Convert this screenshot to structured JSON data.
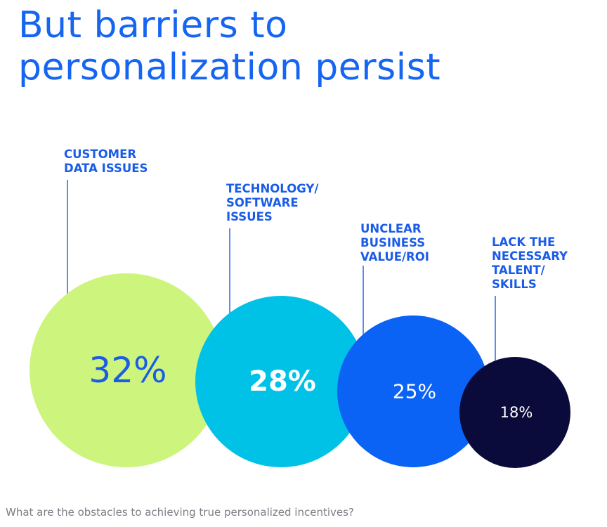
{
  "title": {
    "line1": "But barriers to",
    "line2": "personalization persist"
  },
  "question": "What are the obstacles to achieving true personalized incentives?",
  "chart_data": {
    "type": "bubble",
    "categories": [
      "CUSTOMER DATA ISSUES",
      "TECHNOLOGY/ SOFTWARE ISSUES",
      "UNCLEAR BUSINESS VALUE/ROI",
      "LACK THE NECESSARY TALENT/ SKILLS"
    ],
    "values": [
      32,
      28,
      25,
      18
    ],
    "value_labels": [
      "32%",
      "28%",
      "25%",
      "18%"
    ],
    "label_lines": [
      [
        "CUSTOMER",
        "DATA ISSUES"
      ],
      [
        "TECHNOLOGY/",
        "SOFTWARE",
        "ISSUES"
      ],
      [
        "UNCLEAR",
        "BUSINESS",
        "VALUE/ROI"
      ],
      [
        "LACK THE",
        "NECESSARY",
        "TALENT/",
        "SKILLS"
      ]
    ],
    "colors": [
      "#cdf47c",
      "#00c2e6",
      "#0a63f4",
      "#0b0b3b"
    ],
    "value_text_colors": [
      "#1a5ce8",
      "#ffffff",
      "#ffffff",
      "#ffffff"
    ],
    "label_color": "#1a5ce8",
    "grid": false,
    "legend": "none"
  }
}
